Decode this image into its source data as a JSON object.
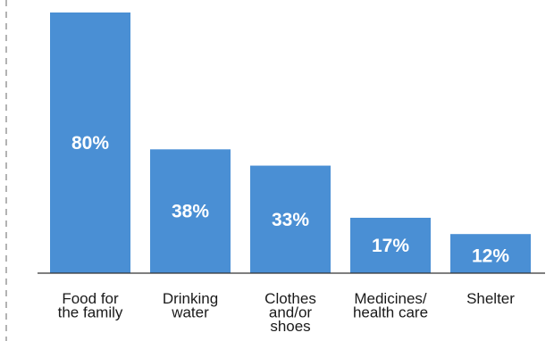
{
  "chart_data": {
    "type": "bar",
    "categories": [
      [
        "Food for",
        "the family"
      ],
      [
        "Drinking",
        "water"
      ],
      [
        "Clothes",
        "and/or",
        "shoes"
      ],
      [
        "Medicines/",
        "health care"
      ],
      [
        "Shelter"
      ]
    ],
    "values": [
      80,
      38,
      33,
      17,
      12
    ],
    "value_labels": [
      "80%",
      "38%",
      "33%",
      "17%",
      "12%"
    ],
    "ylim": [
      0,
      80
    ],
    "bar_color": "#4a8fd4",
    "grid": false,
    "left_axis_style": "dashed"
  }
}
